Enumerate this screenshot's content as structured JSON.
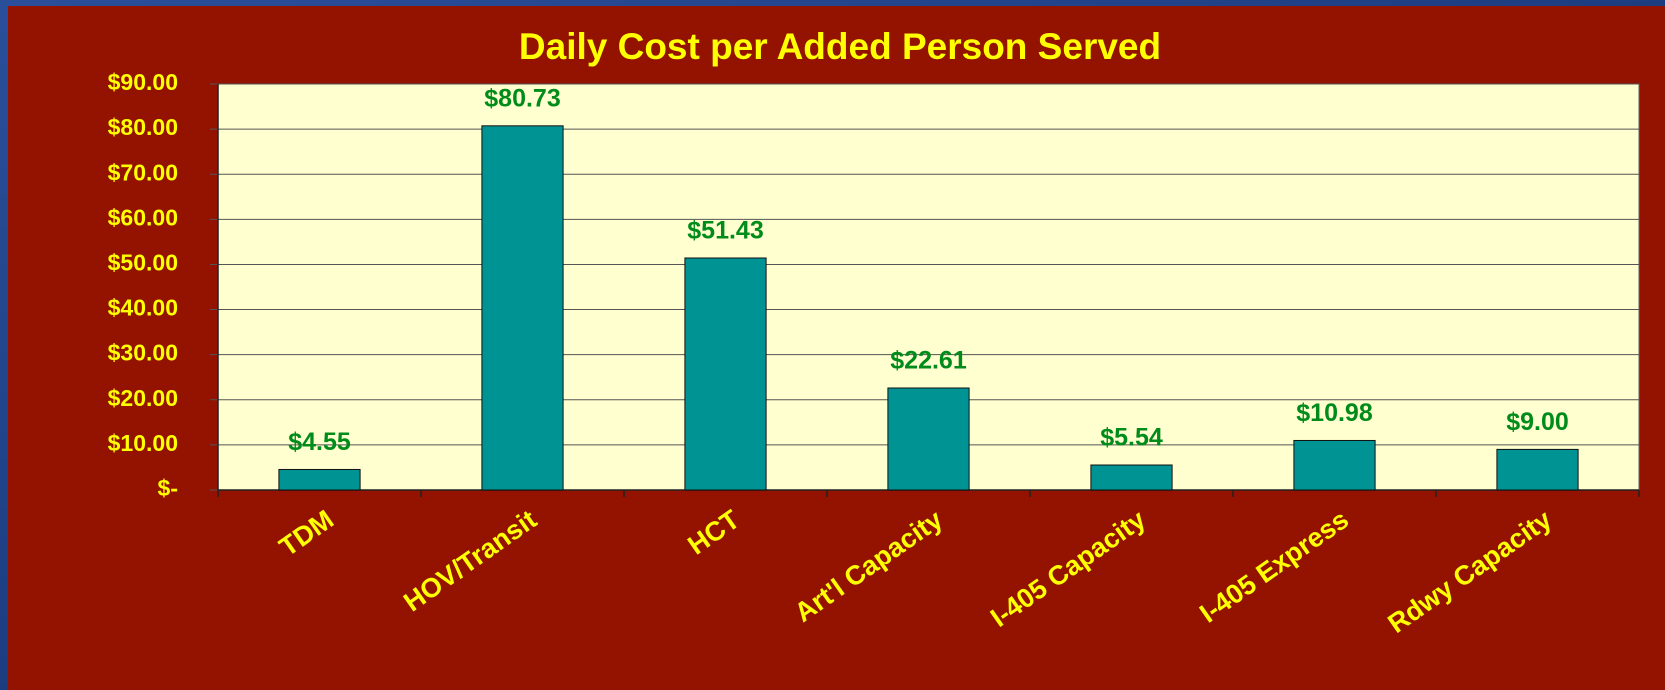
{
  "chart_data": {
    "type": "bar",
    "title": "Daily Cost per Added Person Served",
    "categories": [
      "TDM",
      "HOV/Transit",
      "HCT",
      "Art'l Capacity",
      "I-405 Capacity",
      "I-405 Express",
      "Rdwy Capacity"
    ],
    "values": [
      4.55,
      80.73,
      51.43,
      22.61,
      5.54,
      10.98,
      9.0
    ],
    "value_labels": [
      "$4.55",
      "$80.73",
      "$51.43",
      "$22.61",
      "$5.54",
      "$10.98",
      "$9.00"
    ],
    "color": "#009393",
    "ylim": [
      0,
      90
    ],
    "yticks": [
      {
        "value": 0,
        "label": "$-"
      },
      {
        "value": 10,
        "label": "$10.00"
      },
      {
        "value": 20,
        "label": "$20.00"
      },
      {
        "value": 30,
        "label": "$30.00"
      },
      {
        "value": 40,
        "label": "$40.00"
      },
      {
        "value": 50,
        "label": "$50.00"
      },
      {
        "value": 60,
        "label": "$60.00"
      },
      {
        "value": 70,
        "label": "$70.00"
      },
      {
        "value": 80,
        "label": "$80.00"
      },
      {
        "value": 90,
        "label": "$90.00"
      }
    ],
    "grid": true
  }
}
